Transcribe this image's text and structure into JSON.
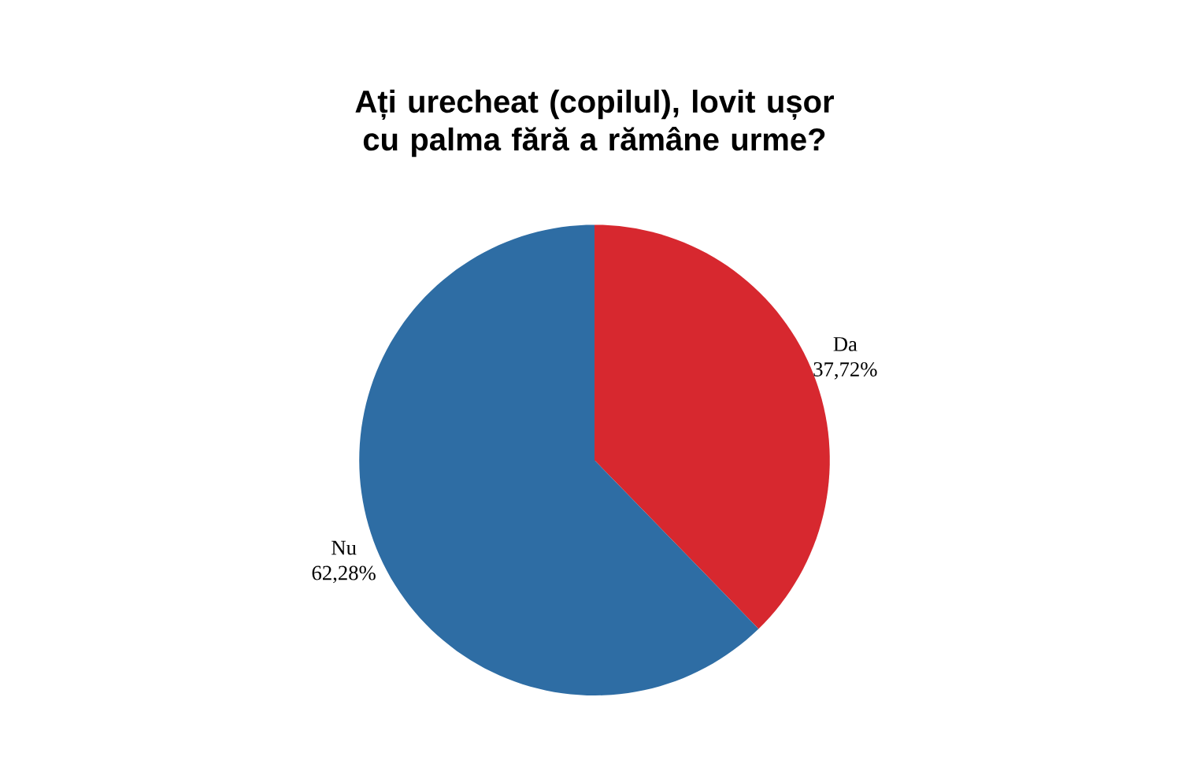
{
  "chart_data": {
    "type": "pie",
    "title": "Ați urecheat (copilul), lovit ușor cu palma fără a rămâne urme?",
    "categories": [
      "Da",
      "Nu"
    ],
    "values": [
      37.72,
      62.28
    ],
    "value_labels": [
      "37,72%",
      "62,28%"
    ],
    "colors": [
      "#d7282f",
      "#2e6da4"
    ]
  }
}
